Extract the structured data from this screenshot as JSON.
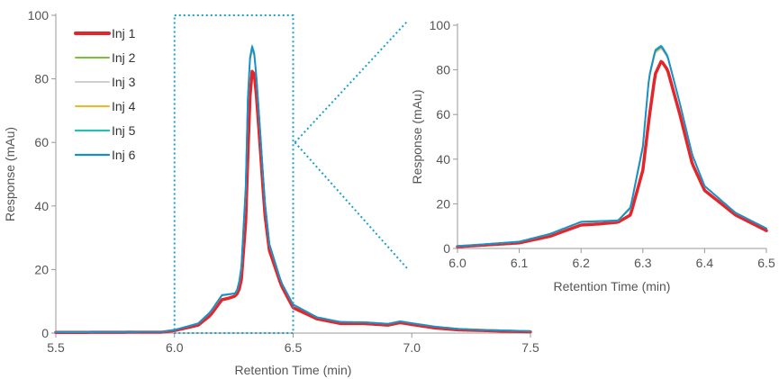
{
  "chart_data": [
    {
      "type": "line",
      "xlabel": "Retention Time (min)",
      "ylabel": "Response (mAu)",
      "xlim": [
        5.5,
        7.5
      ],
      "ylim": [
        0,
        100
      ],
      "xticks": [
        "5.5",
        "6.0",
        "6.5",
        "7.0",
        "7.5"
      ],
      "yticks": [
        "0",
        "20",
        "40",
        "60",
        "80",
        "100"
      ],
      "grid": false,
      "legend_position": "top-left",
      "zoom_box": {
        "x": [
          6.0,
          6.5
        ],
        "y": [
          0,
          100
        ]
      },
      "series": [
        {
          "name": "Inj 1",
          "color": "#e3262b",
          "width": 3.5,
          "x": [
            5.5,
            5.95,
            6.0,
            6.1,
            6.15,
            6.2,
            6.23,
            6.26,
            6.28,
            6.3,
            6.31,
            6.32,
            6.33,
            6.34,
            6.36,
            6.38,
            6.4,
            6.45,
            6.5,
            6.6,
            6.7,
            6.8,
            6.9,
            6.95,
            7.0,
            7.1,
            7.2,
            7.3,
            7.5
          ],
          "y": [
            0.2,
            0.3,
            0.8,
            2.5,
            5.5,
            10.5,
            11.0,
            11.8,
            15.0,
            35.0,
            58.0,
            78.0,
            84.0,
            80.0,
            60.0,
            38.0,
            26.0,
            15.0,
            8.0,
            4.5,
            3.0,
            3.0,
            2.5,
            3.3,
            2.7,
            1.6,
            1.0,
            0.8,
            0.4
          ]
        },
        {
          "name": "Inj 2",
          "color": "#7cbf3a",
          "width": 1.5,
          "x": [
            5.5,
            5.95,
            6.0,
            6.1,
            6.15,
            6.2,
            6.23,
            6.26,
            6.28,
            6.3,
            6.31,
            6.32,
            6.33,
            6.34,
            6.36,
            6.38,
            6.4,
            6.45,
            6.5,
            6.6,
            6.7,
            6.8,
            6.9,
            6.95,
            7.0,
            7.1,
            7.2,
            7.3,
            7.5
          ],
          "y": [
            0.3,
            0.4,
            1.0,
            3.0,
            6.5,
            11.8,
            12.2,
            12.5,
            18.0,
            45.0,
            76.0,
            88.0,
            90.0,
            86.0,
            65.0,
            42.0,
            28.0,
            16.0,
            9.0,
            5.0,
            3.5,
            3.4,
            2.9,
            3.7,
            3.1,
            2.0,
            1.3,
            1.0,
            0.6
          ]
        },
        {
          "name": "Inj 3",
          "color": "#cfcfcf",
          "width": 1.5,
          "x": [
            5.5,
            5.95,
            6.0,
            6.1,
            6.15,
            6.2,
            6.23,
            6.26,
            6.28,
            6.3,
            6.31,
            6.32,
            6.33,
            6.34,
            6.36,
            6.38,
            6.4,
            6.45,
            6.5,
            6.6,
            6.7,
            6.8,
            6.9,
            6.95,
            7.0,
            7.1,
            7.2,
            7.3,
            7.5
          ],
          "y": [
            0.3,
            0.4,
            1.0,
            3.0,
            6.4,
            11.7,
            12.1,
            12.4,
            17.8,
            44.5,
            75.5,
            87.5,
            89.5,
            85.5,
            64.5,
            41.5,
            27.8,
            15.9,
            9.0,
            5.0,
            3.5,
            3.4,
            2.9,
            3.7,
            3.1,
            2.0,
            1.3,
            1.0,
            0.6
          ]
        },
        {
          "name": "Inj 4",
          "color": "#f2b824",
          "width": 1.5,
          "x": [
            5.5,
            5.95,
            6.0,
            6.1,
            6.15,
            6.2,
            6.23,
            6.26,
            6.28,
            6.3,
            6.31,
            6.32,
            6.33,
            6.34,
            6.36,
            6.38,
            6.4,
            6.45,
            6.5,
            6.6,
            6.7,
            6.8,
            6.9,
            6.95,
            7.0,
            7.1,
            7.2,
            7.3,
            7.5
          ],
          "y": [
            0.3,
            0.4,
            1.0,
            3.0,
            6.5,
            11.8,
            12.2,
            12.5,
            18.0,
            45.0,
            76.0,
            88.0,
            90.0,
            86.0,
            65.0,
            42.0,
            28.0,
            16.0,
            9.0,
            5.0,
            3.5,
            3.5,
            3.0,
            3.8,
            3.2,
            2.1,
            1.4,
            1.1,
            0.7
          ]
        },
        {
          "name": "Inj 5",
          "color": "#2cbcb4",
          "width": 1.8,
          "x": [
            5.5,
            5.95,
            6.0,
            6.1,
            6.15,
            6.2,
            6.23,
            6.26,
            6.28,
            6.3,
            6.31,
            6.32,
            6.33,
            6.34,
            6.36,
            6.38,
            6.4,
            6.45,
            6.5,
            6.6,
            6.7,
            6.8,
            6.9,
            6.95,
            7.0,
            7.1,
            7.2,
            7.3,
            7.5
          ],
          "y": [
            0.3,
            0.4,
            1.0,
            3.1,
            6.6,
            12.0,
            12.3,
            12.6,
            18.5,
            46.0,
            77.0,
            89.0,
            91.0,
            86.5,
            65.0,
            42.0,
            28.0,
            16.0,
            9.0,
            5.0,
            3.5,
            3.4,
            2.9,
            3.7,
            3.1,
            2.0,
            1.3,
            1.0,
            0.6
          ]
        },
        {
          "name": "Inj 6",
          "color": "#1a8ecb",
          "width": 1.8,
          "x": [
            5.5,
            5.95,
            6.0,
            6.1,
            6.15,
            6.2,
            6.23,
            6.26,
            6.28,
            6.3,
            6.31,
            6.32,
            6.33,
            6.34,
            6.36,
            6.38,
            6.4,
            6.45,
            6.5,
            6.6,
            6.7,
            6.8,
            6.9,
            6.95,
            7.0,
            7.1,
            7.2,
            7.3,
            7.5
          ],
          "y": [
            0.3,
            0.4,
            1.0,
            3.0,
            6.5,
            11.9,
            12.2,
            12.5,
            18.2,
            45.5,
            76.5,
            88.5,
            90.5,
            86.0,
            65.0,
            42.0,
            28.0,
            16.0,
            9.0,
            5.0,
            3.5,
            3.4,
            2.9,
            3.7,
            3.1,
            2.0,
            1.3,
            1.0,
            0.6
          ]
        }
      ]
    },
    {
      "type": "line",
      "xlabel": "Retention Time (min)",
      "ylabel": "Response (mAu)",
      "xlim": [
        6.0,
        6.5
      ],
      "ylim": [
        0,
        100
      ],
      "xticks": [
        "6.0",
        "6.1",
        "6.2",
        "6.3",
        "6.4",
        "6.5"
      ],
      "yticks": [
        "0",
        "20",
        "40",
        "60",
        "80",
        "100"
      ],
      "grid": false,
      "series_source": "same series as main chart (Inj 1–Inj 6), zoomed to 6.0–6.5 min"
    }
  ]
}
